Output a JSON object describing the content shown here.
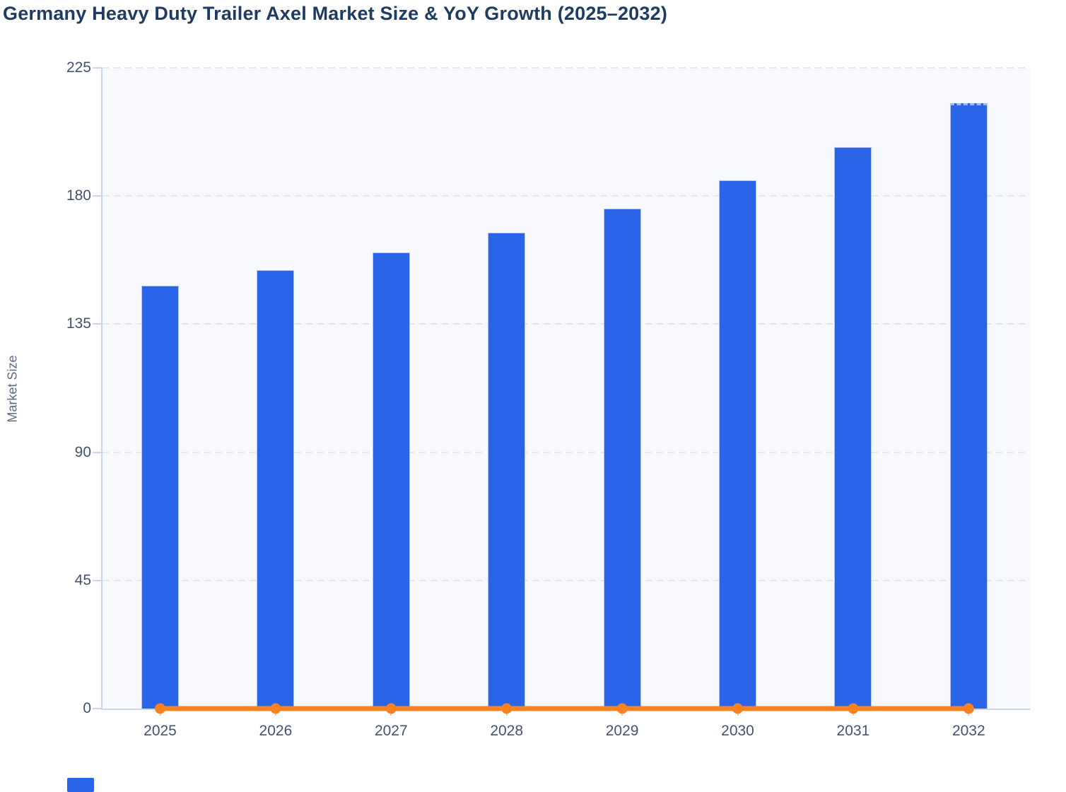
{
  "title": "Germany Heavy Duty Trailer Axel Market Size & YoY Growth (2025–2032)",
  "colors": {
    "title": "#1e3c61",
    "bar": "#2a64e8",
    "bar_border": "#b3c7f4",
    "line": "#f9821f",
    "marker": "#f9821f",
    "axis": "#c9d4ee",
    "grid": "#e2e6ee",
    "tick_label": "#45526e",
    "plot_bg": "#f8f9fc",
    "y_title": "#5c6b80",
    "legend_swatch": "#2a64e8"
  },
  "chart_data": {
    "type": "bar",
    "title": "Germany Heavy Duty Trailer Axel Market Size & YoY Growth (2025–2032)",
    "categories": [
      "2025",
      "2026",
      "2027",
      "2028",
      "2029",
      "2030",
      "2031",
      "2032"
    ],
    "series": [
      {
        "name": "Market Size",
        "type": "bar",
        "color": "#2a64e8",
        "values": [
          148.5,
          154.0,
          160.2,
          167.1,
          175.7,
          185.4,
          197.3,
          212.7
        ]
      },
      {
        "name": "YoY Growth",
        "type": "line",
        "color": "#f9821f",
        "values": [
          0,
          0,
          0,
          0,
          0,
          0,
          0,
          0
        ]
      }
    ],
    "xlabel": "",
    "ylabel": "Market Size",
    "ylim": [
      0,
      225
    ],
    "yticks": [
      0,
      45,
      90,
      135,
      180,
      225
    ],
    "grid": "horizontal-dashed",
    "legend_position": "none",
    "last_bar_dashed_top": true
  }
}
